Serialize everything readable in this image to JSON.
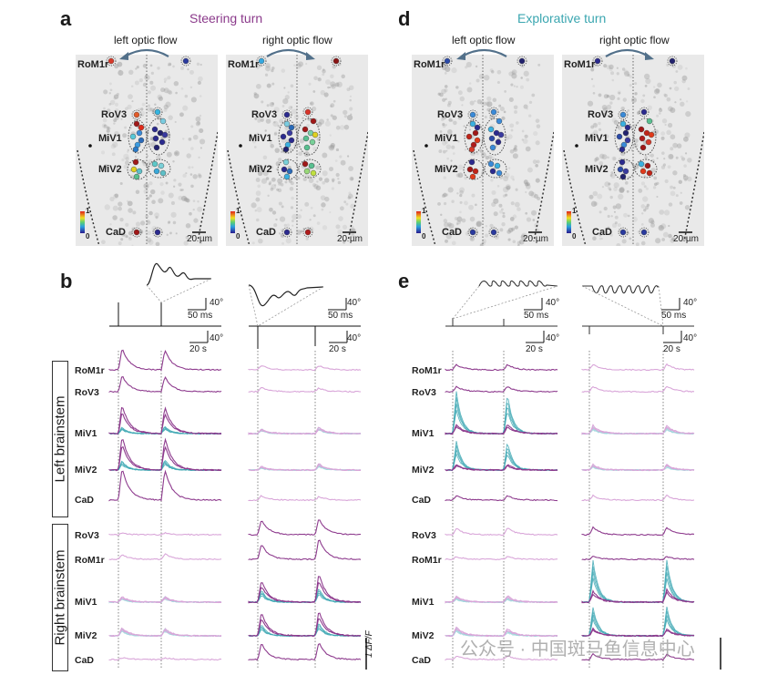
{
  "panels": {
    "a": {
      "letter": "a",
      "title": "Steering turn",
      "title_color": "#8b3a8b",
      "left_label": "left optic flow",
      "right_label": "right optic flow"
    },
    "b": {
      "letter": "b"
    },
    "d": {
      "letter": "d",
      "title": "Explorative turn",
      "title_color": "#3aa6b0",
      "left_label": "left optic flow",
      "right_label": "right optic flow"
    },
    "e": {
      "letter": "e"
    }
  },
  "brain_labels": [
    "RoM1r",
    "RoV3",
    "MiV1",
    "MiV2",
    "CaD"
  ],
  "colorbar": {
    "max": "1",
    "min": "0"
  },
  "scalebar_brain": "20 µm",
  "scalebars_behavior": {
    "inset_angle": "40°",
    "inset_time": "50 ms",
    "main_angle": "40°",
    "main_time": "20 s"
  },
  "trace_groups": {
    "left": {
      "label": "Left brainstem",
      "rows": [
        "RoM1r",
        "RoV3",
        "MiV1",
        "MiV2",
        "CaD"
      ]
    },
    "right": {
      "label": "Right brainstem",
      "rows": [
        "RoV3",
        "RoM1r",
        "MiV1",
        "MiV2",
        "CaD"
      ]
    }
  },
  "dff_scale": "1 ΔF/F",
  "watermark": "公众号 · 中国斑马鱼信息中心",
  "colors": {
    "magenta": "#8e3b8e",
    "magenta_light": "#d9a6d9",
    "teal": "#3fa8b4",
    "teal_light": "#9fd6dc"
  }
}
